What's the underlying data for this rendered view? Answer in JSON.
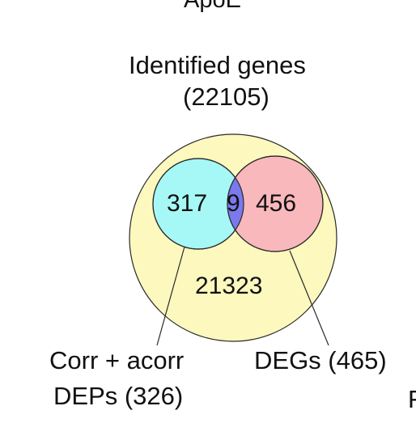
{
  "header": {
    "title": "ApoE"
  },
  "universe": {
    "label": "Identified genes",
    "count": "(22105)"
  },
  "regions": {
    "left_only": "317",
    "overlap": "9",
    "right_only": "456",
    "outside": "21323"
  },
  "callouts": {
    "left_line1": "Corr + acorr",
    "left_line2": "DEPs (326)",
    "right": "DEGs (465)",
    "edge_fragment": "F"
  },
  "colors": {
    "universe_fill": "#FCF8BE",
    "left_fill": "#A6F8F6",
    "right_fill": "#F9B8BC",
    "overlap_fill": "#7B79EE",
    "stroke": "#2a2a2a"
  }
}
